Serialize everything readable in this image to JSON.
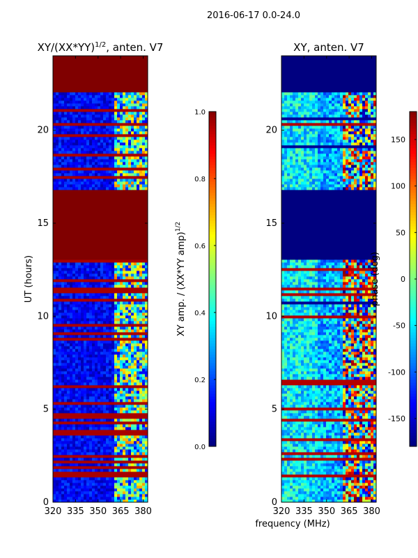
{
  "suptitle": "2016-06-17 0.0-24.0",
  "xlabel": "frequency (MHz)",
  "chart_data": [
    {
      "type": "heatmap",
      "title": "XY/(XX*YY)",
      "title_exponent": "1/2",
      "title_suffix": ", anten. V7",
      "ylabel": "UT (hours)",
      "xticks": [
        "320",
        "335",
        "350",
        "365",
        "380"
      ],
      "xtick_values": [
        320,
        335,
        350,
        365,
        380
      ],
      "xlim": [
        320,
        383
      ],
      "yticks": [
        "0",
        "5",
        "10",
        "15",
        "20"
      ],
      "ytick_values": [
        0,
        5,
        10,
        15,
        20
      ],
      "ylim": [
        0,
        24
      ],
      "colormap": "jet",
      "colorbar": {
        "label": "XY amp. / (XX*YY amp)",
        "label_exponent": "1/2",
        "ticks": [
          "0.0",
          "0.2",
          "0.4",
          "0.6",
          "0.8",
          "1.0"
        ],
        "tick_values": [
          0.0,
          0.2,
          0.4,
          0.6,
          0.8,
          1.0
        ],
        "range": [
          0.0,
          1.0
        ]
      },
      "flagged_blocks_hours": [
        [
          13.0,
          16.8
        ],
        [
          22.0,
          24.0
        ]
      ],
      "flagged_value": 1.0,
      "bright_band_start_mhz": 360
    },
    {
      "type": "heatmap",
      "title": "XY, anten. V7",
      "ylabel": "",
      "xticks": [
        "320",
        "335",
        "350",
        "365",
        "380"
      ],
      "xtick_values": [
        320,
        335,
        350,
        365,
        380
      ],
      "xlim": [
        320,
        383
      ],
      "yticks": [
        "0",
        "5",
        "10",
        "15",
        "20"
      ],
      "ytick_values": [
        0,
        5,
        10,
        15,
        20
      ],
      "ylim": [
        0,
        24
      ],
      "colormap": "jet",
      "colorbar": {
        "label": "phase (deg)",
        "ticks": [
          "-150",
          "-100",
          "-50",
          "0",
          "50",
          "100",
          "150"
        ],
        "tick_values": [
          -150,
          -100,
          -50,
          0,
          50,
          100,
          150
        ],
        "range": [
          -180,
          180
        ]
      },
      "flagged_blocks_hours": [
        [
          13.0,
          16.8
        ],
        [
          22.0,
          24.0
        ]
      ],
      "flagged_value": -180,
      "bright_band_start_mhz": 360
    }
  ]
}
